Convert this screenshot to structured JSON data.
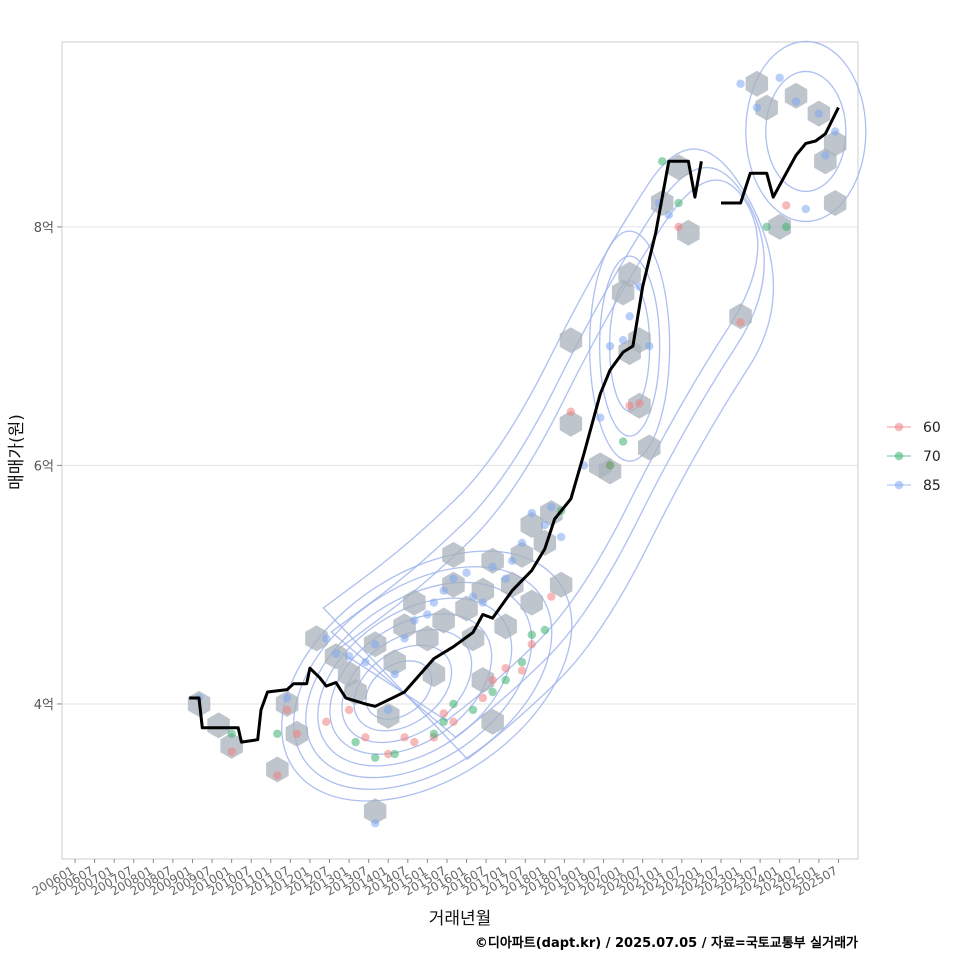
{
  "chart_data": {
    "type": "scatter",
    "xlabel": "거래년월",
    "ylabel": "매매가(원)",
    "caption": "©디아파트(dapt.kr) / 2025.07.05 / 자료=국토교통부 실거래가",
    "x_ticks": [
      "200601",
      "200607",
      "200701",
      "200707",
      "200801",
      "200807",
      "200901",
      "200907",
      "201001",
      "201007",
      "201101",
      "201107",
      "201201",
      "201207",
      "201301",
      "201307",
      "201401",
      "201407",
      "201501",
      "201507",
      "201601",
      "201607",
      "201701",
      "201707",
      "201801",
      "201807",
      "201901",
      "201907",
      "202001",
      "202007",
      "202101",
      "202107",
      "202201",
      "202207",
      "202301",
      "202307",
      "202401",
      "202407",
      "202501",
      "202507"
    ],
    "y_ticks": [
      {
        "value": 4,
        "label": "4억"
      },
      {
        "value": 6,
        "label": "6억"
      },
      {
        "value": 8,
        "label": "8억"
      }
    ],
    "xlim": [
      "2005-09",
      "2026-01"
    ],
    "ylim": [
      2.7,
      9.55
    ],
    "grid": "horizontal",
    "legend_position": "right",
    "colors": {
      "60": "#f08080",
      "70": "#3cb371",
      "85": "#7fa8f0",
      "trend": "#000000",
      "hex": "#a9b1bb",
      "contour": "#9fb4ec"
    },
    "legend": [
      {
        "name": "60",
        "color": "#f08080"
      },
      {
        "name": "70",
        "color": "#3cb371"
      },
      {
        "name": "85",
        "color": "#7fa8f0"
      }
    ],
    "trend_line": [
      [
        "2008-12",
        4.05
      ],
      [
        "2009-03",
        4.05
      ],
      [
        "2009-04",
        3.8
      ],
      [
        "2010-03",
        3.8
      ],
      [
        "2010-04",
        3.68
      ],
      [
        "2010-09",
        3.7
      ],
      [
        "2010-10",
        3.95
      ],
      [
        "2010-12",
        4.1
      ],
      [
        "2011-06",
        4.12
      ],
      [
        "2011-08",
        4.17
      ],
      [
        "2011-12",
        4.17
      ],
      [
        "2012-01",
        4.3
      ],
      [
        "2012-04",
        4.22
      ],
      [
        "2012-06",
        4.15
      ],
      [
        "2012-09",
        4.18
      ],
      [
        "2012-12",
        4.05
      ],
      [
        "2013-06",
        4.0
      ],
      [
        "2013-09",
        3.98
      ],
      [
        "2014-03",
        4.06
      ],
      [
        "2014-06",
        4.1
      ],
      [
        "2015-03",
        4.38
      ],
      [
        "2015-09",
        4.48
      ],
      [
        "2016-03",
        4.6
      ],
      [
        "2016-06",
        4.75
      ],
      [
        "2016-09",
        4.72
      ],
      [
        "2017-03",
        4.95
      ],
      [
        "2017-09",
        5.12
      ],
      [
        "2018-01",
        5.3
      ],
      [
        "2018-04",
        5.55
      ],
      [
        "2018-09",
        5.72
      ],
      [
        "2019-01",
        6.1
      ],
      [
        "2019-06",
        6.6
      ],
      [
        "2019-09",
        6.8
      ],
      [
        "2020-01",
        6.95
      ],
      [
        "2020-04",
        7.0
      ],
      [
        "2020-07",
        7.5
      ],
      [
        "2020-11",
        7.95
      ],
      [
        "2021-03",
        8.55
      ],
      [
        "2021-09",
        8.55
      ],
      [
        "2021-11",
        8.25
      ],
      [
        "2022-01",
        8.55
      ]
    ],
    "trend_line_2": [
      [
        "2022-07",
        8.2
      ],
      [
        "2023-01",
        8.2
      ],
      [
        "2023-04",
        8.45
      ],
      [
        "2023-09",
        8.45
      ],
      [
        "2023-11",
        8.25
      ],
      [
        "2024-03",
        8.45
      ],
      [
        "2024-06",
        8.6
      ],
      [
        "2024-09",
        8.7
      ],
      [
        "2024-12",
        8.72
      ],
      [
        "2025-03",
        8.78
      ],
      [
        "2025-07",
        9.0
      ]
    ],
    "series": [
      {
        "name": "60",
        "points": [
          [
            "2010-01",
            3.6
          ],
          [
            "2011-03",
            3.4
          ],
          [
            "2011-06",
            3.95
          ],
          [
            "2011-09",
            3.75
          ],
          [
            "2012-06",
            3.85
          ],
          [
            "2013-01",
            3.95
          ],
          [
            "2013-06",
            3.72
          ],
          [
            "2014-01",
            3.58
          ],
          [
            "2014-06",
            3.72
          ],
          [
            "2014-09",
            3.68
          ],
          [
            "2015-03",
            3.72
          ],
          [
            "2015-06",
            3.92
          ],
          [
            "2015-09",
            3.85
          ],
          [
            "2016-06",
            4.05
          ],
          [
            "2016-09",
            4.2
          ],
          [
            "2017-01",
            4.3
          ],
          [
            "2017-06",
            4.28
          ],
          [
            "2017-09",
            4.5
          ],
          [
            "2018-03",
            4.9
          ],
          [
            "2018-09",
            6.45
          ],
          [
            "2019-09",
            6.0
          ],
          [
            "2020-03",
            6.5
          ],
          [
            "2020-06",
            6.52
          ],
          [
            "2021-06",
            8.0
          ],
          [
            "2023-01",
            7.2
          ],
          [
            "2024-03",
            8.18
          ]
        ]
      },
      {
        "name": "70",
        "points": [
          [
            "2010-01",
            3.75
          ],
          [
            "2011-03",
            3.75
          ],
          [
            "2013-03",
            3.68
          ],
          [
            "2013-09",
            3.55
          ],
          [
            "2014-03",
            3.58
          ],
          [
            "2015-03",
            3.75
          ],
          [
            "2015-06",
            3.85
          ],
          [
            "2015-09",
            4.0
          ],
          [
            "2016-03",
            3.95
          ],
          [
            "2016-09",
            4.1
          ],
          [
            "2017-01",
            4.2
          ],
          [
            "2017-06",
            4.35
          ],
          [
            "2017-09",
            4.58
          ],
          [
            "2018-01",
            4.62
          ],
          [
            "2018-06",
            5.62
          ],
          [
            "2019-09",
            6.0
          ],
          [
            "2020-01",
            6.2
          ],
          [
            "2021-01",
            8.55
          ],
          [
            "2021-06",
            8.2
          ],
          [
            "2023-09",
            8.0
          ],
          [
            "2024-03",
            8.0
          ]
        ]
      },
      {
        "name": "85",
        "points": [
          [
            "2009-03",
            4.05
          ],
          [
            "2011-06",
            4.05
          ],
          [
            "2012-06",
            4.55
          ],
          [
            "2012-09",
            4.42
          ],
          [
            "2013-01",
            4.4
          ],
          [
            "2013-06",
            4.35
          ],
          [
            "2013-09",
            4.5
          ],
          [
            "2014-01",
            3.95
          ],
          [
            "2014-03",
            4.25
          ],
          [
            "2014-06",
            4.55
          ],
          [
            "2014-09",
            4.7
          ],
          [
            "2015-01",
            4.75
          ],
          [
            "2015-03",
            4.85
          ],
          [
            "2015-06",
            4.95
          ],
          [
            "2015-09",
            5.05
          ],
          [
            "2016-01",
            5.1
          ],
          [
            "2016-03",
            4.9
          ],
          [
            "2016-06",
            4.85
          ],
          [
            "2016-09",
            5.15
          ],
          [
            "2017-01",
            5.05
          ],
          [
            "2017-03",
            5.2
          ],
          [
            "2017-06",
            5.35
          ],
          [
            "2017-09",
            5.6
          ],
          [
            "2018-01",
            5.5
          ],
          [
            "2018-03",
            5.65
          ],
          [
            "2018-06",
            5.4
          ],
          [
            "2019-01",
            6.0
          ],
          [
            "2019-06",
            6.4
          ],
          [
            "2019-09",
            7.0
          ],
          [
            "2020-01",
            7.05
          ],
          [
            "2020-03",
            7.25
          ],
          [
            "2020-06",
            7.5
          ],
          [
            "2020-09",
            7.0
          ],
          [
            "2020-12",
            8.2
          ],
          [
            "2021-03",
            8.1
          ],
          [
            "2023-01",
            9.2
          ],
          [
            "2023-06",
            9.0
          ],
          [
            "2024-01",
            9.25
          ],
          [
            "2024-06",
            9.05
          ],
          [
            "2025-01",
            8.95
          ],
          [
            "2025-03",
            8.6
          ],
          [
            "2025-06",
            8.8
          ],
          [
            "2024-09",
            8.15
          ],
          [
            "2013-09",
            3.0
          ]
        ]
      }
    ],
    "hex_bins": [
      [
        "2009-03",
        4.0
      ],
      [
        "2009-09",
        3.82
      ],
      [
        "2010-01",
        3.65
      ],
      [
        "2011-03",
        3.45
      ],
      [
        "2011-06",
        4.0
      ],
      [
        "2011-09",
        3.75
      ],
      [
        "2012-03",
        4.55
      ],
      [
        "2012-09",
        4.4
      ],
      [
        "2013-01",
        4.25
      ],
      [
        "2013-03",
        4.1
      ],
      [
        "2013-09",
        4.5
      ],
      [
        "2013-09",
        3.1
      ],
      [
        "2014-01",
        3.9
      ],
      [
        "2014-03",
        4.35
      ],
      [
        "2014-06",
        4.65
      ],
      [
        "2014-09",
        4.85
      ],
      [
        "2015-01",
        4.55
      ],
      [
        "2015-03",
        4.25
      ],
      [
        "2015-06",
        4.7
      ],
      [
        "2015-09",
        5.0
      ],
      [
        "2015-09",
        5.25
      ],
      [
        "2016-01",
        4.8
      ],
      [
        "2016-03",
        4.55
      ],
      [
        "2016-06",
        4.2
      ],
      [
        "2016-06",
        4.95
      ],
      [
        "2016-09",
        5.2
      ],
      [
        "2016-09",
        3.85
      ],
      [
        "2017-01",
        4.65
      ],
      [
        "2017-03",
        5.0
      ],
      [
        "2017-06",
        5.25
      ],
      [
        "2017-09",
        5.5
      ],
      [
        "2017-09",
        4.85
      ],
      [
        "2018-01",
        5.35
      ],
      [
        "2018-03",
        5.6
      ],
      [
        "2018-06",
        5.0
      ],
      [
        "2018-09",
        6.35
      ],
      [
        "2018-09",
        7.05
      ],
      [
        "2019-06",
        6.0
      ],
      [
        "2019-09",
        5.95
      ],
      [
        "2020-01",
        7.45
      ],
      [
        "2020-03",
        7.6
      ],
      [
        "2020-03",
        6.95
      ],
      [
        "2020-06",
        7.05
      ],
      [
        "2020-06",
        6.5
      ],
      [
        "2020-09",
        6.15
      ],
      [
        "2021-01",
        8.2
      ],
      [
        "2021-06",
        8.5
      ],
      [
        "2021-09",
        7.95
      ],
      [
        "2023-01",
        7.25
      ],
      [
        "2023-06",
        9.2
      ],
      [
        "2023-09",
        9.0
      ],
      [
        "2024-01",
        8.0
      ],
      [
        "2024-06",
        9.1
      ],
      [
        "2025-01",
        8.95
      ],
      [
        "2025-03",
        8.55
      ],
      [
        "2025-06",
        8.2
      ],
      [
        "2025-06",
        8.7
      ]
    ]
  }
}
